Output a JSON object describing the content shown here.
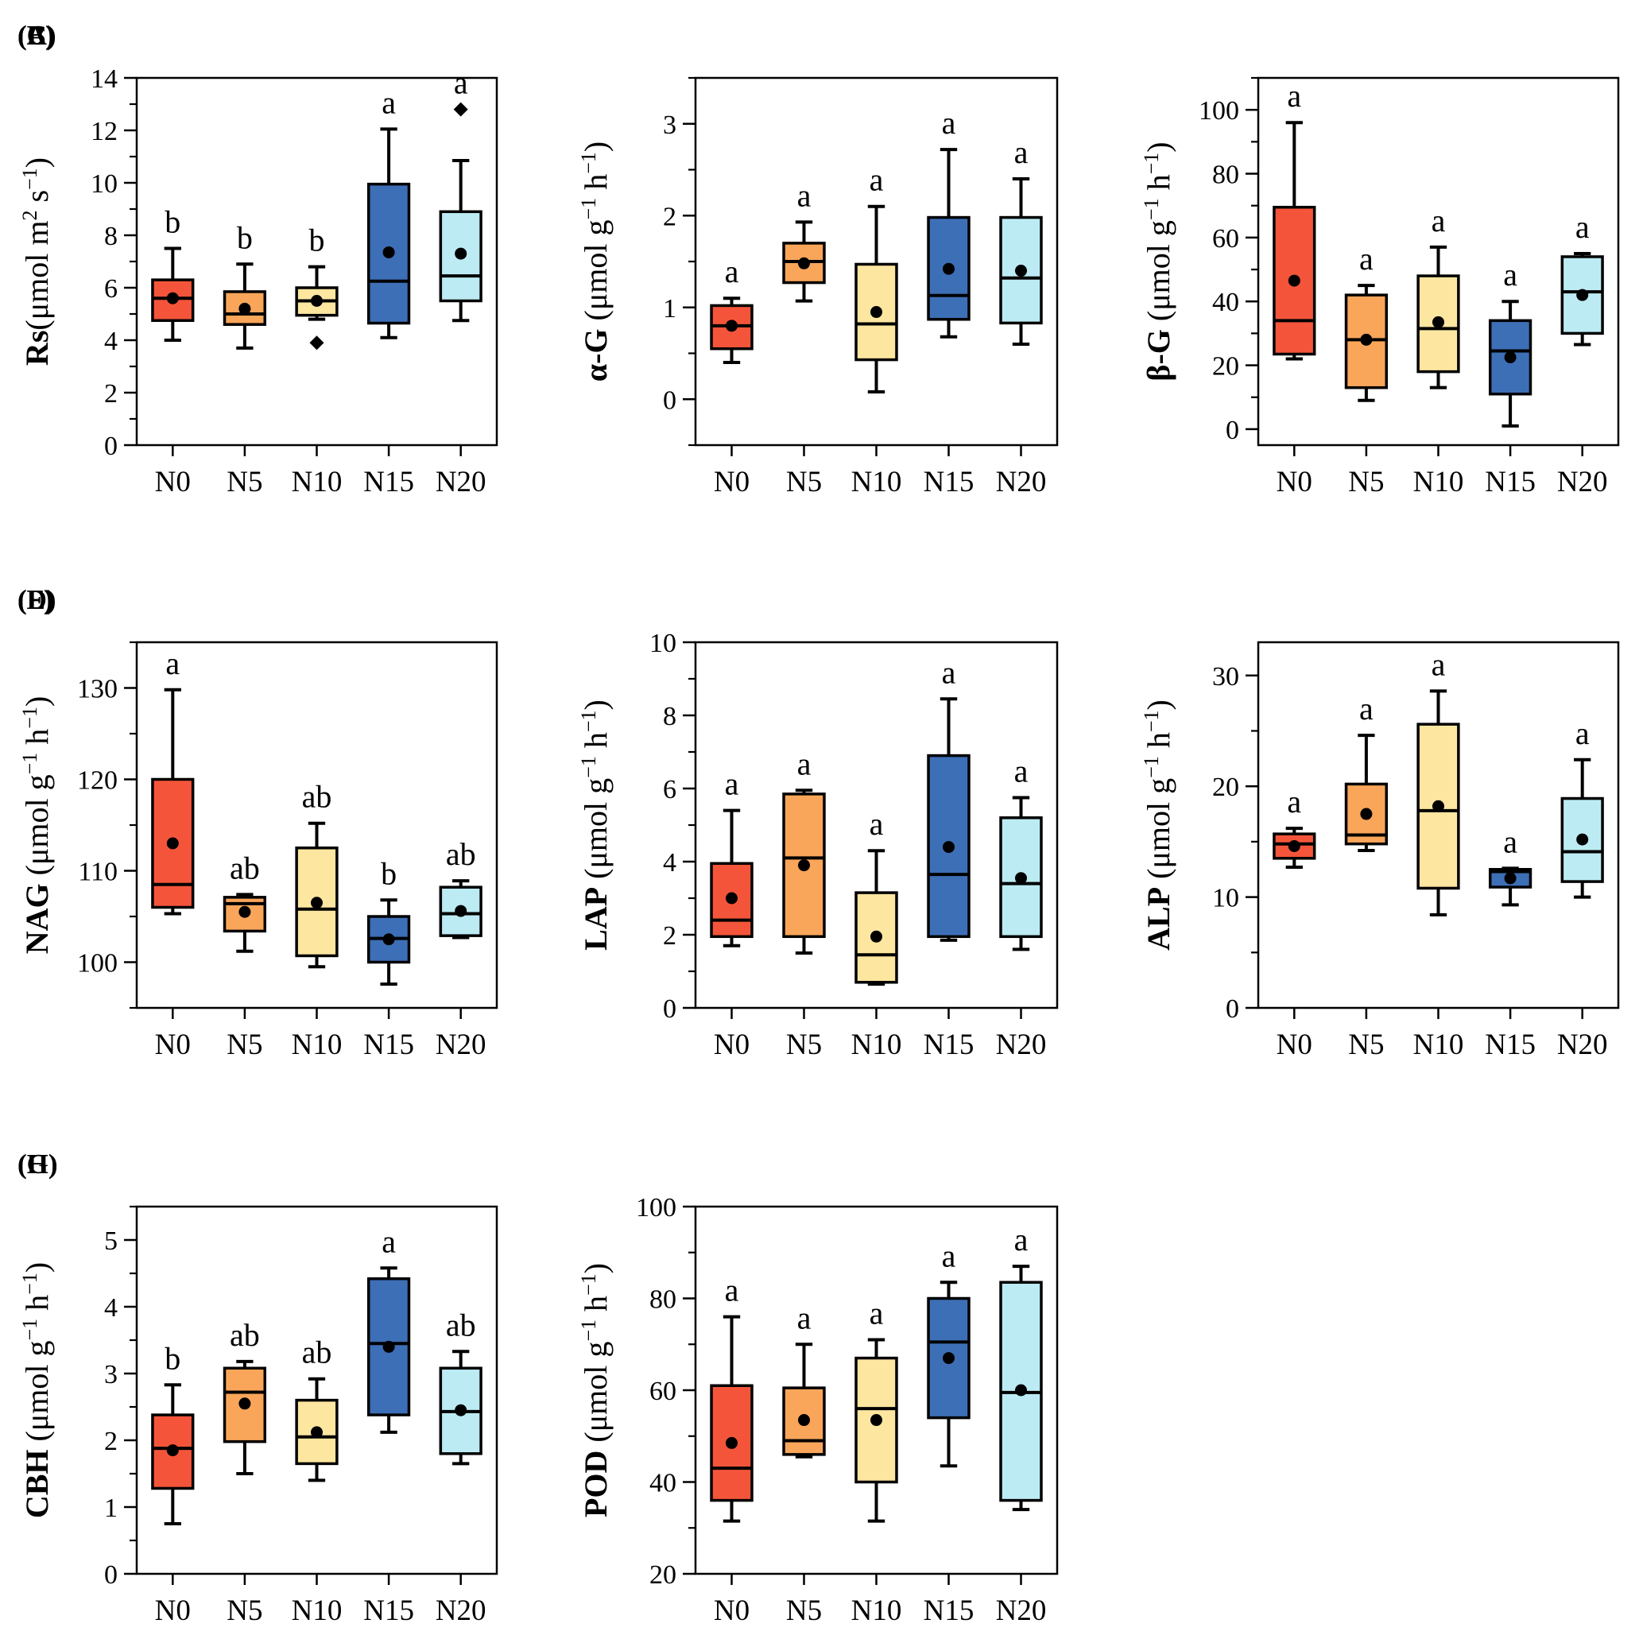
{
  "figure": {
    "categories": [
      "N0",
      "N5",
      "N10",
      "N15",
      "N20"
    ],
    "colors": {
      "N0": "#f4553a",
      "N5": "#f9a65a",
      "N10": "#fde6a0",
      "N15": "#3d6fb6",
      "N20": "#bcebf3",
      "stroke": "#000000"
    }
  },
  "chart_data": [
    {
      "id": "A",
      "panel_label": "(A)",
      "type": "box",
      "ylabel": {
        "bold": "Rs",
        "unit": "(μmol m",
        "sup1": "2",
        "mid": " s",
        "sup2": "−1",
        "end": ")"
      },
      "ylim": [
        0,
        14
      ],
      "yticks": [
        0,
        2,
        4,
        6,
        8,
        10,
        12,
        14
      ],
      "series": [
        {
          "name": "N0",
          "min": 4.0,
          "q1": 4.75,
          "median": 5.6,
          "q3": 6.3,
          "max": 7.5,
          "mean": 5.6,
          "letter": "b",
          "outliers": []
        },
        {
          "name": "N5",
          "min": 3.7,
          "q1": 4.6,
          "median": 5.0,
          "q3": 5.85,
          "max": 6.9,
          "mean": 5.2,
          "letter": "b",
          "outliers": []
        },
        {
          "name": "N10",
          "min": 4.8,
          "q1": 4.95,
          "median": 5.5,
          "q3": 6.0,
          "max": 6.8,
          "mean": 5.5,
          "letter": "b",
          "outliers": [
            3.9
          ]
        },
        {
          "name": "N15",
          "min": 4.1,
          "q1": 4.65,
          "median": 6.25,
          "q3": 9.95,
          "max": 12.05,
          "mean": 7.35,
          "letter": "a",
          "outliers": []
        },
        {
          "name": "N20",
          "min": 4.75,
          "q1": 5.5,
          "median": 6.45,
          "q3": 8.9,
          "max": 10.85,
          "mean": 7.3,
          "letter": "a",
          "outliers": [
            12.8
          ]
        }
      ]
    },
    {
      "id": "B",
      "panel_label": "(B)",
      "type": "box",
      "ylabel": {
        "bold": "α-G",
        "unit": " (μmol g",
        "sup1": "−1",
        "mid": " h",
        "sup2": "−1",
        "end": ")"
      },
      "ylim": [
        -0.5,
        3.5
      ],
      "yticks": [
        0,
        1,
        2,
        3
      ],
      "series": [
        {
          "name": "N0",
          "min": 0.4,
          "q1": 0.55,
          "median": 0.8,
          "q3": 1.02,
          "max": 1.1,
          "mean": 0.8,
          "letter": "a",
          "outliers": []
        },
        {
          "name": "N5",
          "min": 1.07,
          "q1": 1.27,
          "median": 1.5,
          "q3": 1.7,
          "max": 1.93,
          "mean": 1.48,
          "letter": "a",
          "outliers": []
        },
        {
          "name": "N10",
          "min": 0.08,
          "q1": 0.43,
          "median": 0.82,
          "q3": 1.47,
          "max": 2.1,
          "mean": 0.95,
          "letter": "a",
          "outliers": []
        },
        {
          "name": "N15",
          "min": 0.68,
          "q1": 0.87,
          "median": 1.13,
          "q3": 1.98,
          "max": 2.72,
          "mean": 1.42,
          "letter": "a",
          "outliers": []
        },
        {
          "name": "N20",
          "min": 0.6,
          "q1": 0.83,
          "median": 1.32,
          "q3": 1.98,
          "max": 2.4,
          "mean": 1.4,
          "letter": "a",
          "outliers": []
        }
      ]
    },
    {
      "id": "C",
      "panel_label": "(C)",
      "type": "box",
      "ylabel": {
        "bold": "β-G",
        "unit": " (μmol g",
        "sup1": "−1",
        "mid": " h",
        "sup2": "−1",
        "end": ")"
      },
      "ylim": [
        -5,
        110
      ],
      "yticks": [
        0,
        20,
        40,
        60,
        80,
        100
      ],
      "series": [
        {
          "name": "N0",
          "min": 22,
          "q1": 23.5,
          "median": 34,
          "q3": 69.5,
          "max": 96,
          "mean": 46.5,
          "letter": "a",
          "outliers": []
        },
        {
          "name": "N5",
          "min": 9,
          "q1": 13,
          "median": 28,
          "q3": 42,
          "max": 45,
          "mean": 28,
          "letter": "a",
          "outliers": []
        },
        {
          "name": "N10",
          "min": 13,
          "q1": 18,
          "median": 31.5,
          "q3": 48,
          "max": 57,
          "mean": 33.5,
          "letter": "a",
          "outliers": []
        },
        {
          "name": "N15",
          "min": 1,
          "q1": 11,
          "median": 24.5,
          "q3": 34,
          "max": 40,
          "mean": 22.5,
          "letter": "a",
          "outliers": []
        },
        {
          "name": "N20",
          "min": 26.5,
          "q1": 30,
          "median": 43,
          "q3": 54,
          "max": 55,
          "mean": 42,
          "letter": "a",
          "outliers": []
        }
      ]
    },
    {
      "id": "D",
      "panel_label": "(D)",
      "type": "box",
      "ylabel": {
        "bold": "NAG",
        "unit": " (μmol g",
        "sup1": "−1",
        "mid": " h",
        "sup2": "−1",
        "end": ")"
      },
      "ylim": [
        95,
        135
      ],
      "yticks": [
        100,
        110,
        120,
        130
      ],
      "series": [
        {
          "name": "N0",
          "min": 105.3,
          "q1": 106.0,
          "median": 108.5,
          "q3": 120.0,
          "max": 129.8,
          "mean": 113.0,
          "letter": "a",
          "outliers": []
        },
        {
          "name": "N5",
          "min": 101.2,
          "q1": 103.4,
          "median": 106.4,
          "q3": 107.1,
          "max": 107.4,
          "mean": 105.5,
          "letter": "ab",
          "outliers": []
        },
        {
          "name": "N10",
          "min": 99.5,
          "q1": 100.7,
          "median": 105.8,
          "q3": 112.5,
          "max": 115.2,
          "mean": 106.5,
          "letter": "ab",
          "outliers": []
        },
        {
          "name": "N15",
          "min": 97.6,
          "q1": 100.0,
          "median": 102.6,
          "q3": 105.0,
          "max": 106.8,
          "mean": 102.5,
          "letter": "b",
          "outliers": []
        },
        {
          "name": "N20",
          "min": 102.7,
          "q1": 102.9,
          "median": 105.3,
          "q3": 108.2,
          "max": 108.9,
          "mean": 105.6,
          "letter": "ab",
          "outliers": []
        }
      ]
    },
    {
      "id": "E",
      "panel_label": "(E)",
      "type": "box",
      "ylabel": {
        "bold": "LAP",
        "unit": " (μmol g",
        "sup1": "−1",
        "mid": " h",
        "sup2": "−1",
        "end": ")"
      },
      "ylim": [
        0,
        10
      ],
      "yticks": [
        0,
        2,
        4,
        6,
        8,
        10
      ],
      "series": [
        {
          "name": "N0",
          "min": 1.7,
          "q1": 1.95,
          "median": 2.4,
          "q3": 3.95,
          "max": 5.4,
          "mean": 3.0,
          "letter": "a",
          "outliers": []
        },
        {
          "name": "N5",
          "min": 1.5,
          "q1": 1.95,
          "median": 4.1,
          "q3": 5.85,
          "max": 5.95,
          "mean": 3.9,
          "letter": "a",
          "outliers": []
        },
        {
          "name": "N10",
          "min": 0.65,
          "q1": 0.7,
          "median": 1.45,
          "q3": 3.15,
          "max": 4.3,
          "mean": 1.95,
          "letter": "a",
          "outliers": []
        },
        {
          "name": "N15",
          "min": 1.85,
          "q1": 1.95,
          "median": 3.65,
          "q3": 6.9,
          "max": 8.45,
          "mean": 4.4,
          "letter": "a",
          "outliers": []
        },
        {
          "name": "N20",
          "min": 1.6,
          "q1": 1.95,
          "median": 3.4,
          "q3": 5.2,
          "max": 5.75,
          "mean": 3.55,
          "letter": "a",
          "outliers": []
        }
      ]
    },
    {
      "id": "F",
      "panel_label": "(F)",
      "type": "box",
      "ylabel": {
        "bold": "ALP",
        "unit": " (μmol g",
        "sup1": "−1",
        "mid": " h",
        "sup2": "−1",
        "end": ")"
      },
      "ylim": [
        0,
        33
      ],
      "yticks": [
        0,
        10,
        20,
        30
      ],
      "series": [
        {
          "name": "N0",
          "min": 12.7,
          "q1": 13.5,
          "median": 14.8,
          "q3": 15.7,
          "max": 16.2,
          "mean": 14.6,
          "letter": "a",
          "outliers": []
        },
        {
          "name": "N5",
          "min": 14.2,
          "q1": 14.8,
          "median": 15.6,
          "q3": 20.2,
          "max": 24.6,
          "mean": 17.5,
          "letter": "a",
          "outliers": []
        },
        {
          "name": "N10",
          "min": 8.4,
          "q1": 10.8,
          "median": 17.8,
          "q3": 25.6,
          "max": 28.6,
          "mean": 18.2,
          "letter": "a",
          "outliers": []
        },
        {
          "name": "N15",
          "min": 9.3,
          "q1": 10.9,
          "median": 12.3,
          "q3": 12.5,
          "max": 12.6,
          "mean": 11.7,
          "letter": "a",
          "outliers": []
        },
        {
          "name": "N20",
          "min": 10.0,
          "q1": 11.4,
          "median": 14.1,
          "q3": 18.9,
          "max": 22.4,
          "mean": 15.2,
          "letter": "a",
          "outliers": []
        }
      ]
    },
    {
      "id": "G",
      "panel_label": "(G)",
      "type": "box",
      "ylabel": {
        "bold": "CBH",
        "unit": " (μmol g",
        "sup1": "−1",
        "mid": " h",
        "sup2": "−1",
        "end": ")"
      },
      "ylim": [
        0,
        5.5
      ],
      "yticks": [
        0,
        1,
        2,
        3,
        4,
        5
      ],
      "series": [
        {
          "name": "N0",
          "min": 0.75,
          "q1": 1.28,
          "median": 1.88,
          "q3": 2.38,
          "max": 2.83,
          "mean": 1.85,
          "letter": "b",
          "outliers": []
        },
        {
          "name": "N5",
          "min": 1.5,
          "q1": 1.98,
          "median": 2.72,
          "q3": 3.08,
          "max": 3.18,
          "mean": 2.55,
          "letter": "ab",
          "outliers": []
        },
        {
          "name": "N10",
          "min": 1.4,
          "q1": 1.65,
          "median": 2.05,
          "q3": 2.6,
          "max": 2.92,
          "mean": 2.12,
          "letter": "ab",
          "outliers": []
        },
        {
          "name": "N15",
          "min": 2.12,
          "q1": 2.38,
          "median": 3.45,
          "q3": 4.42,
          "max": 4.58,
          "mean": 3.4,
          "letter": "a",
          "outliers": []
        },
        {
          "name": "N20",
          "min": 1.65,
          "q1": 1.8,
          "median": 2.43,
          "q3": 3.08,
          "max": 3.33,
          "mean": 2.45,
          "letter": "ab",
          "outliers": []
        }
      ]
    },
    {
      "id": "H",
      "panel_label": "(H)",
      "type": "box",
      "ylabel": {
        "bold": "POD",
        "unit": " (μmol g",
        "sup1": "−1",
        "mid": " h",
        "sup2": "−1",
        "end": ")"
      },
      "ylim": [
        20,
        100
      ],
      "yticks": [
        20,
        40,
        60,
        80,
        100
      ],
      "series": [
        {
          "name": "N0",
          "min": 31.5,
          "q1": 36,
          "median": 43,
          "q3": 61,
          "max": 76,
          "mean": 48.5,
          "letter": "a",
          "outliers": []
        },
        {
          "name": "N5",
          "min": 45.5,
          "q1": 46,
          "median": 49,
          "q3": 60.5,
          "max": 70,
          "mean": 53.5,
          "letter": "a",
          "outliers": []
        },
        {
          "name": "N10",
          "min": 31.5,
          "q1": 40,
          "median": 56,
          "q3": 67,
          "max": 71,
          "mean": 53.5,
          "letter": "a",
          "outliers": []
        },
        {
          "name": "N15",
          "min": 43.5,
          "q1": 54,
          "median": 70.5,
          "q3": 80,
          "max": 83.5,
          "mean": 67,
          "letter": "a",
          "outliers": []
        },
        {
          "name": "N20",
          "min": 34,
          "q1": 36,
          "median": 59.5,
          "q3": 83.5,
          "max": 87,
          "mean": 60,
          "letter": "a",
          "outliers": []
        }
      ]
    }
  ]
}
